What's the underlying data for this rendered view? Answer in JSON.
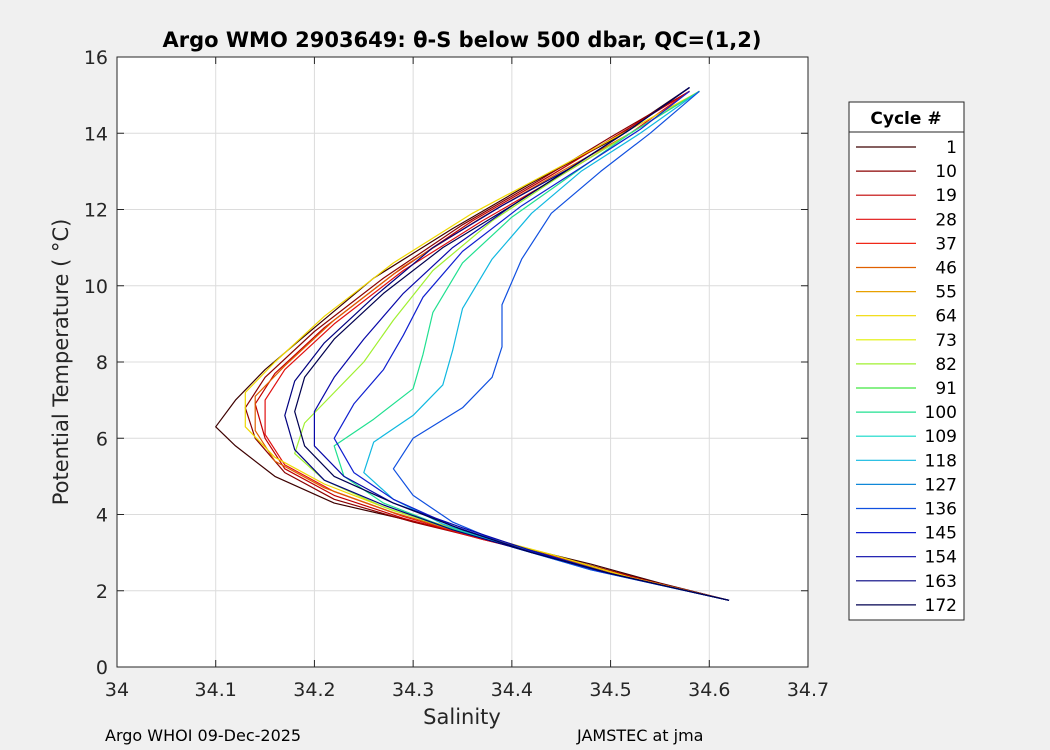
{
  "footer": {
    "left": "Argo WHOI 09-Dec-2025",
    "right": "JAMSTEC at jma"
  },
  "chart_data": {
    "type": "line",
    "title": "Argo WMO 2903649: θ-S below 500 dbar,  QC=(1,2)",
    "xlabel": "Salinity",
    "ylabel": "Potential Temperature ( °C)",
    "xlim": [
      34.0,
      34.7
    ],
    "ylim": [
      0,
      16
    ],
    "x_ticks": [
      34,
      34.1,
      34.2,
      34.3,
      34.4,
      34.5,
      34.6,
      34.7
    ],
    "x_tick_labels": [
      "34",
      "34.1",
      "34.2",
      "34.3",
      "34.4",
      "34.5",
      "34.6",
      "34.7"
    ],
    "y_ticks": [
      0,
      2,
      4,
      6,
      8,
      10,
      12,
      14,
      16
    ],
    "y_tick_labels": [
      "0",
      "2",
      "4",
      "6",
      "8",
      "10",
      "12",
      "14",
      "16"
    ],
    "grid": true,
    "legend": {
      "title": "Cycle #",
      "placement": "right-outside",
      "entries": [
        {
          "label": "1",
          "color": "#3d0000"
        },
        {
          "label": "10",
          "color": "#8b0000"
        },
        {
          "label": "19",
          "color": "#c00000"
        },
        {
          "label": "28",
          "color": "#e01010"
        },
        {
          "label": "37",
          "color": "#f02818"
        },
        {
          "label": "46",
          "color": "#e06000"
        },
        {
          "label": "55",
          "color": "#e8a000"
        },
        {
          "label": "64",
          "color": "#f0d800"
        },
        {
          "label": "73",
          "color": "#e0f000"
        },
        {
          "label": "82",
          "color": "#a0f030"
        },
        {
          "label": "91",
          "color": "#40e840"
        },
        {
          "label": "100",
          "color": "#20e090"
        },
        {
          "label": "109",
          "color": "#10d8c8"
        },
        {
          "label": "118",
          "color": "#10b8e0"
        },
        {
          "label": "127",
          "color": "#1088d8"
        },
        {
          "label": "136",
          "color": "#1050e0"
        },
        {
          "label": "145",
          "color": "#1020d0"
        },
        {
          "label": "154",
          "color": "#0808a8"
        },
        {
          "label": "163",
          "color": "#000080"
        },
        {
          "label": "172",
          "color": "#000050"
        }
      ]
    },
    "series": [
      {
        "cycle": 1,
        "color": "#3d0000",
        "points": [
          [
            34.62,
            1.75
          ],
          [
            34.55,
            2.2
          ],
          [
            34.48,
            2.7
          ],
          [
            34.4,
            3.2
          ],
          [
            34.32,
            3.7
          ],
          [
            34.22,
            4.3
          ],
          [
            34.16,
            5.0
          ],
          [
            34.12,
            5.8
          ],
          [
            34.1,
            6.3
          ],
          [
            34.12,
            7.0
          ],
          [
            34.15,
            7.8
          ],
          [
            34.2,
            8.9
          ],
          [
            34.26,
            10.2
          ],
          [
            34.34,
            11.5
          ],
          [
            34.42,
            12.7
          ],
          [
            34.5,
            13.8
          ],
          [
            34.58,
            15.2
          ]
        ]
      },
      {
        "cycle": 10,
        "color": "#8b0000",
        "points": [
          [
            34.62,
            1.75
          ],
          [
            34.54,
            2.25
          ],
          [
            34.46,
            2.8
          ],
          [
            34.38,
            3.3
          ],
          [
            34.3,
            3.8
          ],
          [
            34.22,
            4.4
          ],
          [
            34.17,
            5.1
          ],
          [
            34.14,
            6.0
          ],
          [
            34.13,
            6.8
          ],
          [
            34.15,
            7.6
          ],
          [
            34.2,
            8.8
          ],
          [
            34.27,
            10.2
          ],
          [
            34.35,
            11.6
          ],
          [
            34.43,
            12.8
          ],
          [
            34.5,
            13.9
          ],
          [
            34.58,
            15.1
          ]
        ]
      },
      {
        "cycle": 19,
        "color": "#c00000",
        "points": [
          [
            34.62,
            1.75
          ],
          [
            34.53,
            2.3
          ],
          [
            34.45,
            2.85
          ],
          [
            34.37,
            3.35
          ],
          [
            34.29,
            3.9
          ],
          [
            34.22,
            4.5
          ],
          [
            34.17,
            5.2
          ],
          [
            34.15,
            6.0
          ],
          [
            34.14,
            6.9
          ],
          [
            34.16,
            7.7
          ],
          [
            34.21,
            8.9
          ],
          [
            34.28,
            10.3
          ],
          [
            34.36,
            11.7
          ],
          [
            34.44,
            12.9
          ],
          [
            34.51,
            14.0
          ],
          [
            34.58,
            15.1
          ]
        ]
      },
      {
        "cycle": 28,
        "color": "#e01010",
        "points": [
          [
            34.62,
            1.75
          ],
          [
            34.53,
            2.3
          ],
          [
            34.45,
            2.85
          ],
          [
            34.37,
            3.35
          ],
          [
            34.29,
            3.95
          ],
          [
            34.22,
            4.6
          ],
          [
            34.17,
            5.3
          ],
          [
            34.15,
            6.1
          ],
          [
            34.15,
            7.0
          ],
          [
            34.17,
            7.8
          ],
          [
            34.22,
            9.0
          ],
          [
            34.29,
            10.4
          ],
          [
            34.37,
            11.7
          ],
          [
            34.45,
            12.9
          ],
          [
            34.52,
            14.0
          ],
          [
            34.58,
            15.1
          ]
        ]
      },
      {
        "cycle": 46,
        "color": "#e06000",
        "points": [
          [
            34.62,
            1.75
          ],
          [
            34.52,
            2.35
          ],
          [
            34.44,
            2.9
          ],
          [
            34.36,
            3.45
          ],
          [
            34.28,
            4.05
          ],
          [
            34.21,
            4.7
          ],
          [
            34.16,
            5.4
          ],
          [
            34.14,
            6.2
          ],
          [
            34.14,
            7.1
          ],
          [
            34.17,
            7.9
          ],
          [
            34.22,
            9.1
          ],
          [
            34.29,
            10.5
          ],
          [
            34.37,
            11.8
          ],
          [
            34.45,
            13.0
          ],
          [
            34.52,
            14.0
          ],
          [
            34.59,
            15.1
          ]
        ]
      },
      {
        "cycle": 64,
        "color": "#f0d800",
        "points": [
          [
            34.62,
            1.75
          ],
          [
            34.52,
            2.35
          ],
          [
            34.44,
            2.95
          ],
          [
            34.36,
            3.5
          ],
          [
            34.28,
            4.1
          ],
          [
            34.21,
            4.8
          ],
          [
            34.16,
            5.5
          ],
          [
            34.13,
            6.3
          ],
          [
            34.13,
            7.2
          ],
          [
            34.16,
            8.0
          ],
          [
            34.21,
            9.2
          ],
          [
            34.28,
            10.6
          ],
          [
            34.36,
            11.9
          ],
          [
            34.44,
            13.0
          ],
          [
            34.52,
            14.1
          ],
          [
            34.59,
            15.1
          ]
        ]
      },
      {
        "cycle": 82,
        "color": "#a0f030",
        "points": [
          [
            34.62,
            1.75
          ],
          [
            34.5,
            2.45
          ],
          [
            34.42,
            3.05
          ],
          [
            34.34,
            3.6
          ],
          [
            34.27,
            4.2
          ],
          [
            34.21,
            4.9
          ],
          [
            34.18,
            5.6
          ],
          [
            34.19,
            6.4
          ],
          [
            34.22,
            7.2
          ],
          [
            34.25,
            8.0
          ],
          [
            34.28,
            9.1
          ],
          [
            34.32,
            10.4
          ],
          [
            34.38,
            11.7
          ],
          [
            34.45,
            12.9
          ],
          [
            34.52,
            14.0
          ],
          [
            34.59,
            15.1
          ]
        ]
      },
      {
        "cycle": 100,
        "color": "#20e090",
        "points": [
          [
            34.62,
            1.75
          ],
          [
            34.49,
            2.5
          ],
          [
            34.41,
            3.1
          ],
          [
            34.33,
            3.7
          ],
          [
            34.27,
            4.3
          ],
          [
            34.23,
            5.0
          ],
          [
            34.22,
            5.8
          ],
          [
            34.26,
            6.5
          ],
          [
            34.3,
            7.3
          ],
          [
            34.31,
            8.2
          ],
          [
            34.32,
            9.3
          ],
          [
            34.35,
            10.6
          ],
          [
            34.4,
            11.8
          ],
          [
            34.46,
            12.9
          ],
          [
            34.52,
            14.0
          ],
          [
            34.59,
            15.1
          ]
        ]
      },
      {
        "cycle": 118,
        "color": "#10b8e0",
        "points": [
          [
            34.62,
            1.75
          ],
          [
            34.48,
            2.55
          ],
          [
            34.4,
            3.15
          ],
          [
            34.33,
            3.75
          ],
          [
            34.28,
            4.4
          ],
          [
            34.25,
            5.1
          ],
          [
            34.26,
            5.9
          ],
          [
            34.3,
            6.6
          ],
          [
            34.33,
            7.4
          ],
          [
            34.34,
            8.3
          ],
          [
            34.35,
            9.4
          ],
          [
            34.38,
            10.7
          ],
          [
            34.42,
            11.9
          ],
          [
            34.47,
            13.0
          ],
          [
            34.53,
            14.0
          ],
          [
            34.59,
            15.1
          ]
        ]
      },
      {
        "cycle": 136,
        "color": "#1050e0",
        "points": [
          [
            34.62,
            1.75
          ],
          [
            34.48,
            2.55
          ],
          [
            34.4,
            3.15
          ],
          [
            34.34,
            3.8
          ],
          [
            34.3,
            4.5
          ],
          [
            34.28,
            5.2
          ],
          [
            34.3,
            6.0
          ],
          [
            34.35,
            6.8
          ],
          [
            34.38,
            7.6
          ],
          [
            34.39,
            8.4
          ],
          [
            34.39,
            9.5
          ],
          [
            34.41,
            10.7
          ],
          [
            34.44,
            11.9
          ],
          [
            34.49,
            13.0
          ],
          [
            34.54,
            14.0
          ],
          [
            34.59,
            15.1
          ]
        ]
      },
      {
        "cycle": 145,
        "color": "#1020d0",
        "points": [
          [
            34.62,
            1.75
          ],
          [
            34.49,
            2.5
          ],
          [
            34.41,
            3.1
          ],
          [
            34.34,
            3.7
          ],
          [
            34.28,
            4.4
          ],
          [
            34.24,
            5.1
          ],
          [
            34.22,
            6.0
          ],
          [
            34.24,
            6.9
          ],
          [
            34.27,
            7.8
          ],
          [
            34.29,
            8.7
          ],
          [
            34.31,
            9.7
          ],
          [
            34.35,
            10.9
          ],
          [
            34.41,
            12.1
          ],
          [
            34.47,
            13.1
          ],
          [
            34.53,
            14.1
          ],
          [
            34.58,
            15.1
          ]
        ]
      },
      {
        "cycle": 154,
        "color": "#0808a8",
        "points": [
          [
            34.62,
            1.75
          ],
          [
            34.5,
            2.45
          ],
          [
            34.42,
            3.05
          ],
          [
            34.35,
            3.65
          ],
          [
            34.28,
            4.3
          ],
          [
            34.23,
            5.0
          ],
          [
            34.2,
            5.8
          ],
          [
            34.2,
            6.7
          ],
          [
            34.22,
            7.6
          ],
          [
            34.25,
            8.6
          ],
          [
            34.29,
            9.8
          ],
          [
            34.34,
            11.0
          ],
          [
            34.4,
            12.1
          ],
          [
            34.46,
            13.1
          ],
          [
            34.52,
            14.1
          ],
          [
            34.58,
            15.2
          ]
        ]
      },
      {
        "cycle": 163,
        "color": "#000080",
        "points": [
          [
            34.62,
            1.75
          ],
          [
            34.5,
            2.45
          ],
          [
            34.42,
            3.0
          ],
          [
            34.34,
            3.6
          ],
          [
            34.27,
            4.25
          ],
          [
            34.21,
            4.9
          ],
          [
            34.18,
            5.7
          ],
          [
            34.17,
            6.6
          ],
          [
            34.18,
            7.5
          ],
          [
            34.21,
            8.5
          ],
          [
            34.26,
            9.7
          ],
          [
            34.32,
            11.0
          ],
          [
            34.39,
            12.1
          ],
          [
            34.46,
            13.1
          ],
          [
            34.52,
            14.1
          ],
          [
            34.58,
            15.2
          ]
        ]
      },
      {
        "cycle": 172,
        "color": "#000050",
        "points": [
          [
            34.62,
            1.75
          ],
          [
            34.5,
            2.45
          ],
          [
            34.42,
            3.0
          ],
          [
            34.35,
            3.6
          ],
          [
            34.28,
            4.3
          ],
          [
            34.22,
            5.0
          ],
          [
            34.19,
            5.8
          ],
          [
            34.18,
            6.7
          ],
          [
            34.19,
            7.6
          ],
          [
            34.22,
            8.6
          ],
          [
            34.27,
            9.8
          ],
          [
            34.33,
            11.0
          ],
          [
            34.4,
            12.1
          ],
          [
            34.46,
            13.1
          ],
          [
            34.52,
            14.1
          ],
          [
            34.58,
            15.2
          ]
        ]
      }
    ]
  }
}
